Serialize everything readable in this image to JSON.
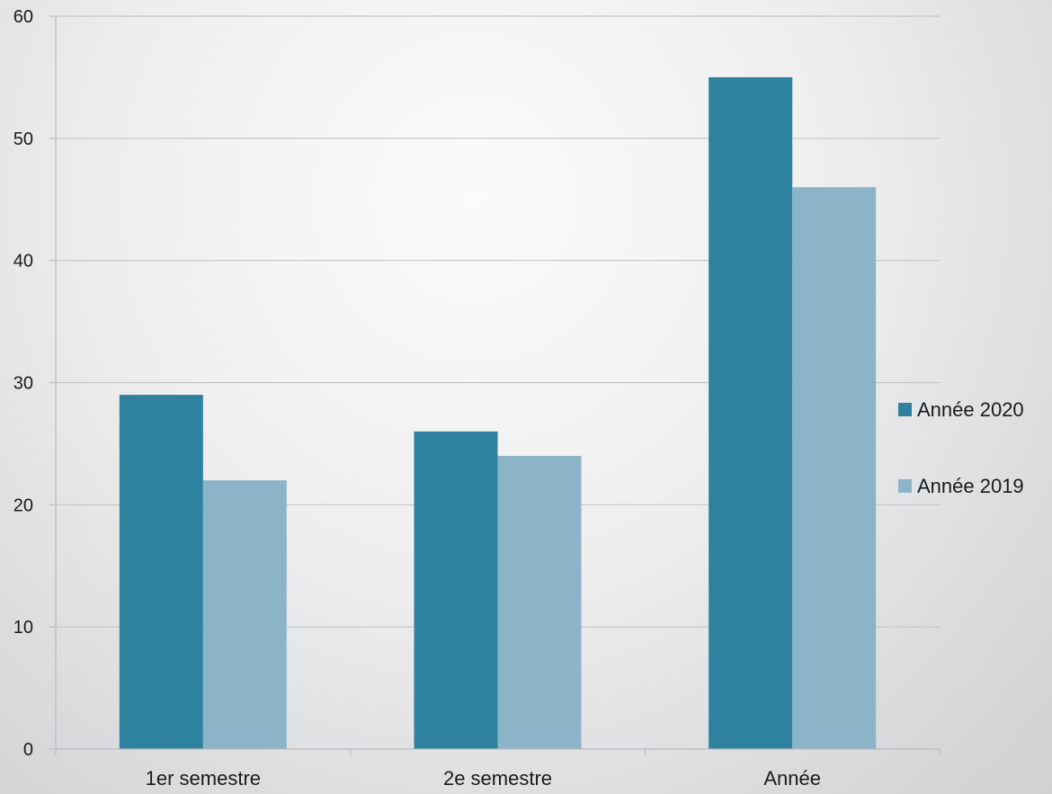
{
  "chart_data": {
    "type": "bar",
    "title": "",
    "xlabel": "",
    "ylabel": "",
    "categories": [
      "1er semestre",
      "2e semestre",
      "Année"
    ],
    "series": [
      {
        "name": "Année 2020",
        "values": [
          29,
          26,
          55
        ],
        "color": "#2e82a0"
      },
      {
        "name": "Année 2019",
        "values": [
          22,
          24,
          46
        ],
        "color": "#8cb4c9"
      }
    ],
    "ylim": [
      0,
      60
    ],
    "yticks": [
      0,
      10,
      20,
      30,
      40,
      50,
      60
    ],
    "grid": true,
    "legend_position": "right"
  }
}
